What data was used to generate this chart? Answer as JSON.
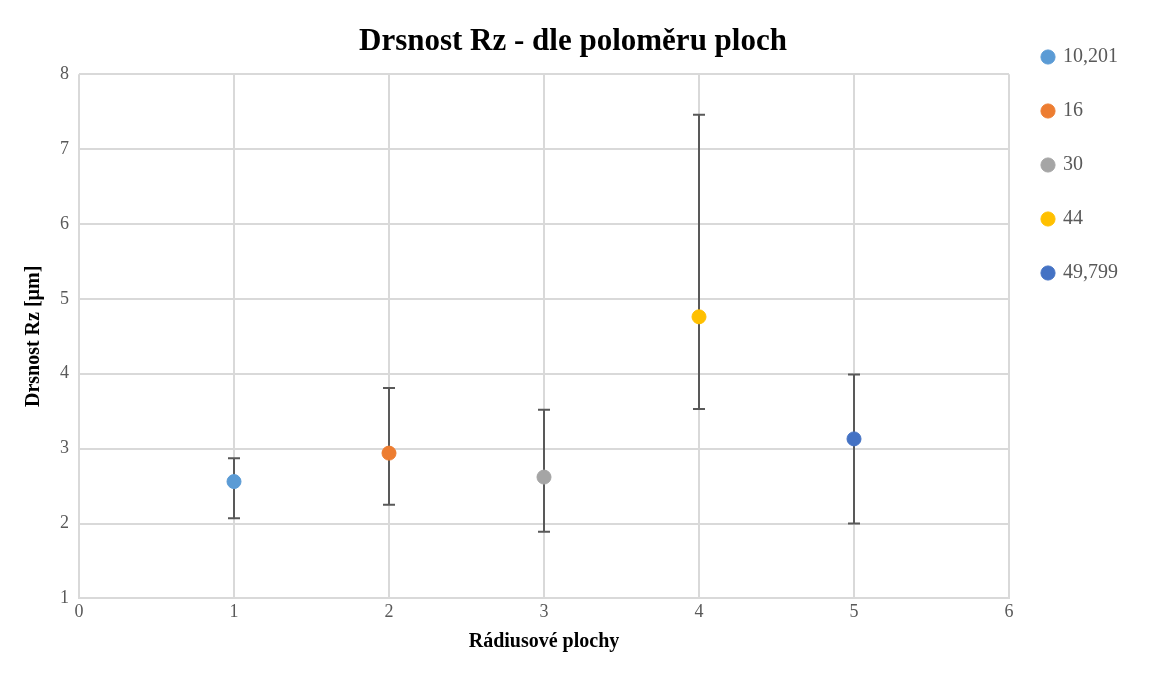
{
  "chart_data": {
    "type": "scatter",
    "title": "Drsnost Rz - dle poloměru ploch",
    "xlabel": "Rádiusové plochy",
    "ylabel": "Drsnost Rz [µm]",
    "xlim": [
      0,
      6
    ],
    "xticks": [
      0,
      1,
      2,
      3,
      4,
      5,
      6
    ],
    "ylim": [
      1,
      8
    ],
    "yticks": [
      1,
      2,
      3,
      4,
      5,
      6,
      7,
      8
    ],
    "grid": true,
    "legend": "right",
    "marker": "circle",
    "series": [
      {
        "name": "10,201",
        "color": "#5b9bd5",
        "x": [
          1
        ],
        "values": [
          2.56
        ],
        "errors": [
          [
            2.07,
            2.87
          ]
        ]
      },
      {
        "name": "16",
        "color": "#ed7d31",
        "x": [
          2
        ],
        "values": [
          2.94
        ],
        "errors": [
          [
            2.25,
            3.81
          ]
        ]
      },
      {
        "name": "30",
        "color": "#a5a5a5",
        "x": [
          3
        ],
        "values": [
          2.62
        ],
        "errors": [
          [
            1.89,
            3.52
          ]
        ]
      },
      {
        "name": "44",
        "color": "#ffc000",
        "x": [
          4
        ],
        "values": [
          4.76
        ],
        "errors": [
          [
            3.53,
            7.46
          ]
        ]
      },
      {
        "name": "49,799",
        "color": "#4472c4",
        "x": [
          5
        ],
        "values": [
          3.13
        ],
        "errors": [
          [
            2.0,
            3.99
          ]
        ]
      }
    ]
  }
}
